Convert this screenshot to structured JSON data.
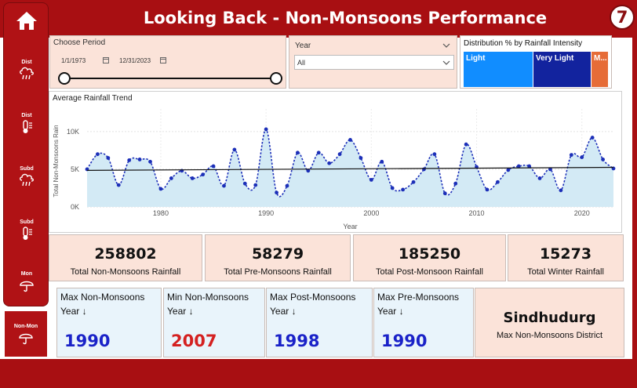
{
  "header": {
    "title": "Looking Back - Non-Monsoons Performance",
    "page_number": "7"
  },
  "sidebar": {
    "items": [
      {
        "label": "Dist",
        "icon": "rain-cloud-icon"
      },
      {
        "label": "Dist",
        "icon": "thermometer-icon"
      },
      {
        "label": "Subd",
        "icon": "rain-cloud-icon"
      },
      {
        "label": "Subd",
        "icon": "thermometer-icon"
      },
      {
        "label": "Mon",
        "icon": "umbrella-icon"
      }
    ],
    "active_item": {
      "label": "Non-Mon",
      "icon": "umbrella-icon"
    }
  },
  "filters": {
    "period": {
      "label": "Choose Period",
      "start_date": "1/1/1973",
      "end_date": "12/31/2023"
    },
    "year": {
      "label": "Year",
      "value": "All"
    }
  },
  "distribution": {
    "title": "Distribution % by Rainfall Intensity",
    "cells": [
      {
        "label": "Light",
        "color": "#118dff",
        "share": 0.48
      },
      {
        "label": "Very Light",
        "color": "#12239e",
        "share": 0.4
      },
      {
        "label": "M...",
        "color": "#e66c37",
        "share": 0.12
      }
    ]
  },
  "chart_data": {
    "type": "area",
    "title": "Average Rainfall Trend",
    "xlabel": "Year",
    "ylabel": "Total Non-Monsoons Rain",
    "xlim": [
      1973,
      2023
    ],
    "ylim": [
      0,
      13000
    ],
    "yticks": [
      0,
      5000,
      10000
    ],
    "ytick_labels": [
      "0K",
      "5K",
      "10K"
    ],
    "xticks": [
      1980,
      1990,
      2000,
      2010,
      2020
    ],
    "x": [
      1973,
      1974,
      1975,
      1976,
      1977,
      1978,
      1979,
      1980,
      1981,
      1982,
      1983,
      1984,
      1985,
      1986,
      1987,
      1988,
      1989,
      1990,
      1991,
      1992,
      1993,
      1994,
      1995,
      1996,
      1997,
      1998,
      1999,
      2000,
      2001,
      2002,
      2003,
      2004,
      2005,
      2006,
      2007,
      2008,
      2009,
      2010,
      2011,
      2012,
      2013,
      2014,
      2015,
      2016,
      2017,
      2018,
      2019,
      2020,
      2021,
      2022,
      2023
    ],
    "series": [
      {
        "values": [
          5000,
          7000,
          6500,
          2900,
          6200,
          6300,
          6000,
          2400,
          3800,
          4800,
          3800,
          4300,
          5400,
          2800,
          7600,
          3100,
          2900,
          10300,
          1900,
          2800,
          7200,
          4800,
          7200,
          5800,
          7000,
          8900,
          6500,
          3600,
          6000,
          2500,
          2300,
          3300,
          5000,
          7000,
          1800,
          3100,
          8300,
          5300,
          2300,
          3300,
          4900,
          5400,
          5400,
          3800,
          5000,
          2200,
          6900,
          6600,
          9200,
          6300,
          5100
        ]
      }
    ],
    "trend_line": {
      "start": 4850,
      "end": 5250
    },
    "grid": true,
    "legend": "none",
    "line_color": "#1c2fb8",
    "fill_color": "#d3eaf5"
  },
  "kpis": [
    {
      "value": "258802",
      "label": "Total Non-Monsoons Rainfall"
    },
    {
      "value": "58279",
      "label": "Total Pre-Monsoons Rainfall"
    },
    {
      "value": "185250",
      "label": "Total Post-Monsoon Rainfall"
    },
    {
      "value": "15273",
      "label": "Total Winter Rainfall"
    }
  ],
  "year_cards": [
    {
      "title": "Max Non-Monsoons",
      "sub": "Year ↓",
      "value": "1990",
      "color": "#1a22c8"
    },
    {
      "title": "Min Non-Monsoons",
      "sub": "Year ↓",
      "value": "2007",
      "color": "#d42020"
    },
    {
      "title": "Max Post-Monsoons",
      "sub": "Year ↓",
      "value": "1998",
      "color": "#1a22c8"
    },
    {
      "title": "Max Pre-Monsoons",
      "sub": "Year ↓",
      "value": "1990",
      "color": "#1a22c8"
    }
  ],
  "district_card": {
    "name": "Sindhudurg",
    "label": "Max Non-Monsoons District"
  }
}
